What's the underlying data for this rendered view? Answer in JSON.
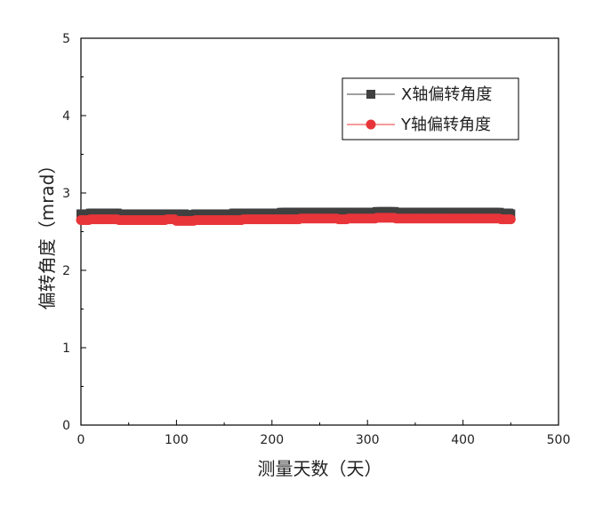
{
  "chart_data": {
    "type": "scatter",
    "xlabel": "测量天数（天）",
    "ylabel": "偏转角度（mrad）",
    "xlim": [
      0,
      500
    ],
    "ylim": [
      0,
      5
    ],
    "xticks": [
      0,
      100,
      200,
      300,
      400,
      500
    ],
    "yticks": [
      0,
      1,
      2,
      3,
      4,
      5
    ],
    "grid": false,
    "legend_position": "top-right",
    "series": [
      {
        "name": "X轴偏转角度",
        "marker": "square",
        "color": "#404040",
        "x": [
          0,
          10,
          20,
          30,
          40,
          50,
          60,
          70,
          80,
          90,
          100,
          110,
          120,
          130,
          140,
          150,
          160,
          170,
          180,
          190,
          200,
          210,
          220,
          230,
          240,
          250,
          260,
          270,
          280,
          290,
          300,
          310,
          320,
          330,
          340,
          350,
          360,
          370,
          380,
          390,
          400,
          410,
          420,
          430,
          440,
          450
        ],
        "values": [
          2.73,
          2.74,
          2.74,
          2.74,
          2.73,
          2.73,
          2.73,
          2.73,
          2.73,
          2.73,
          2.73,
          2.72,
          2.73,
          2.73,
          2.73,
          2.73,
          2.74,
          2.74,
          2.74,
          2.74,
          2.74,
          2.75,
          2.75,
          2.75,
          2.75,
          2.75,
          2.75,
          2.75,
          2.75,
          2.75,
          2.75,
          2.76,
          2.76,
          2.75,
          2.75,
          2.75,
          2.75,
          2.75,
          2.75,
          2.75,
          2.75,
          2.75,
          2.75,
          2.75,
          2.74,
          2.73
        ]
      },
      {
        "name": "Y轴偏转角度",
        "marker": "circle",
        "color": "#e8353a",
        "x": [
          0,
          10,
          20,
          30,
          40,
          50,
          60,
          70,
          80,
          90,
          100,
          110,
          120,
          130,
          140,
          150,
          160,
          170,
          180,
          190,
          200,
          210,
          220,
          230,
          240,
          250,
          260,
          270,
          280,
          290,
          300,
          310,
          320,
          330,
          340,
          350,
          360,
          370,
          380,
          390,
          400,
          410,
          420,
          430,
          440,
          450
        ],
        "values": [
          2.65,
          2.66,
          2.66,
          2.66,
          2.65,
          2.65,
          2.65,
          2.65,
          2.65,
          2.66,
          2.64,
          2.64,
          2.65,
          2.65,
          2.65,
          2.65,
          2.65,
          2.66,
          2.66,
          2.66,
          2.66,
          2.66,
          2.66,
          2.67,
          2.67,
          2.67,
          2.67,
          2.66,
          2.67,
          2.67,
          2.67,
          2.68,
          2.68,
          2.67,
          2.67,
          2.67,
          2.67,
          2.67,
          2.67,
          2.67,
          2.67,
          2.67,
          2.67,
          2.67,
          2.66,
          2.66
        ]
      }
    ]
  }
}
